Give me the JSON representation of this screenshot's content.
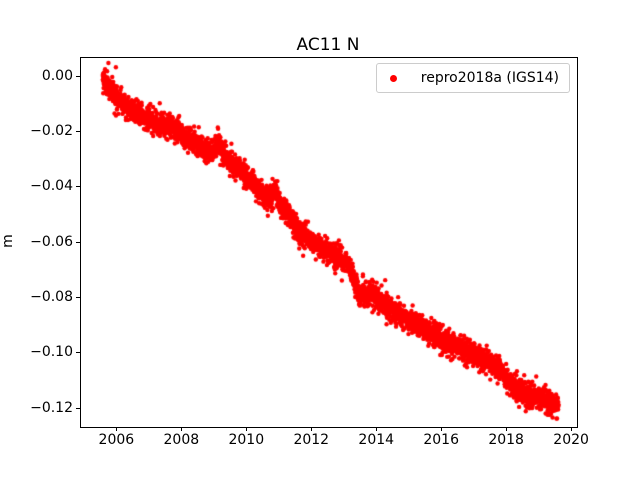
{
  "chart_data": {
    "type": "scatter",
    "title": "AC11 N",
    "xlabel": "",
    "ylabel": "m",
    "grid": false,
    "legend": {
      "label": "repro2018a (IGS14)",
      "location": "upper right",
      "marker": "dot-icon",
      "marker_color": "#ff0000"
    },
    "axes": {
      "xlim": [
        2004.88,
        2020.15
      ],
      "ylim": [
        -0.1266,
        0.0067
      ],
      "xticks": [
        2006,
        2008,
        2010,
        2012,
        2014,
        2016,
        2018,
        2020
      ],
      "xtick_labels": [
        "2006",
        "2008",
        "2010",
        "2012",
        "2014",
        "2016",
        "2018",
        "2020"
      ],
      "yticks": [
        0.0,
        -0.02,
        -0.04,
        -0.06,
        -0.08,
        -0.1,
        -0.12
      ],
      "ytick_labels": [
        "0.00",
        "−0.02",
        "−0.04",
        "−0.06",
        "−0.08",
        "−0.10",
        "−0.12"
      ]
    },
    "series": [
      {
        "name": "repro2018a (IGS14)",
        "color": "#ff0000",
        "marker": "circle",
        "marker_radius_px": 2.2,
        "x_start": 2005.55,
        "x_end": 2019.58,
        "n_points": 5000,
        "noise_sigma_m": 0.0018,
        "outlier_rate": 0.004,
        "trend_anchors": {
          "year": [
            2005.55,
            2005.75,
            2006.0,
            2006.3,
            2006.7,
            2007.0,
            2007.35,
            2007.6,
            2008.0,
            2008.35,
            2008.7,
            2008.95,
            2009.1,
            2009.25,
            2009.6,
            2009.9,
            2010.2,
            2010.5,
            2010.75,
            2010.87,
            2011.0,
            2011.3,
            2011.6,
            2011.9,
            2012.2,
            2012.5,
            2012.8,
            2013.05,
            2013.3,
            2013.45,
            2013.8,
            2014.2,
            2014.6,
            2015.0,
            2015.4,
            2015.8,
            2016.2,
            2016.6,
            2017.0,
            2017.4,
            2017.8,
            2018.1,
            2018.4,
            2018.8,
            2019.1,
            2019.35,
            2019.58
          ],
          "m": [
            -0.001,
            -0.004,
            -0.008,
            -0.011,
            -0.0135,
            -0.016,
            -0.018,
            -0.0175,
            -0.021,
            -0.024,
            -0.0265,
            -0.028,
            -0.0235,
            -0.028,
            -0.032,
            -0.035,
            -0.039,
            -0.0425,
            -0.044,
            -0.0395,
            -0.046,
            -0.05,
            -0.056,
            -0.059,
            -0.061,
            -0.0635,
            -0.0655,
            -0.067,
            -0.0735,
            -0.079,
            -0.0785,
            -0.082,
            -0.085,
            -0.088,
            -0.091,
            -0.0935,
            -0.096,
            -0.0985,
            -0.1,
            -0.1025,
            -0.106,
            -0.111,
            -0.114,
            -0.1155,
            -0.116,
            -0.1175,
            -0.118
          ]
        }
      }
    ]
  }
}
